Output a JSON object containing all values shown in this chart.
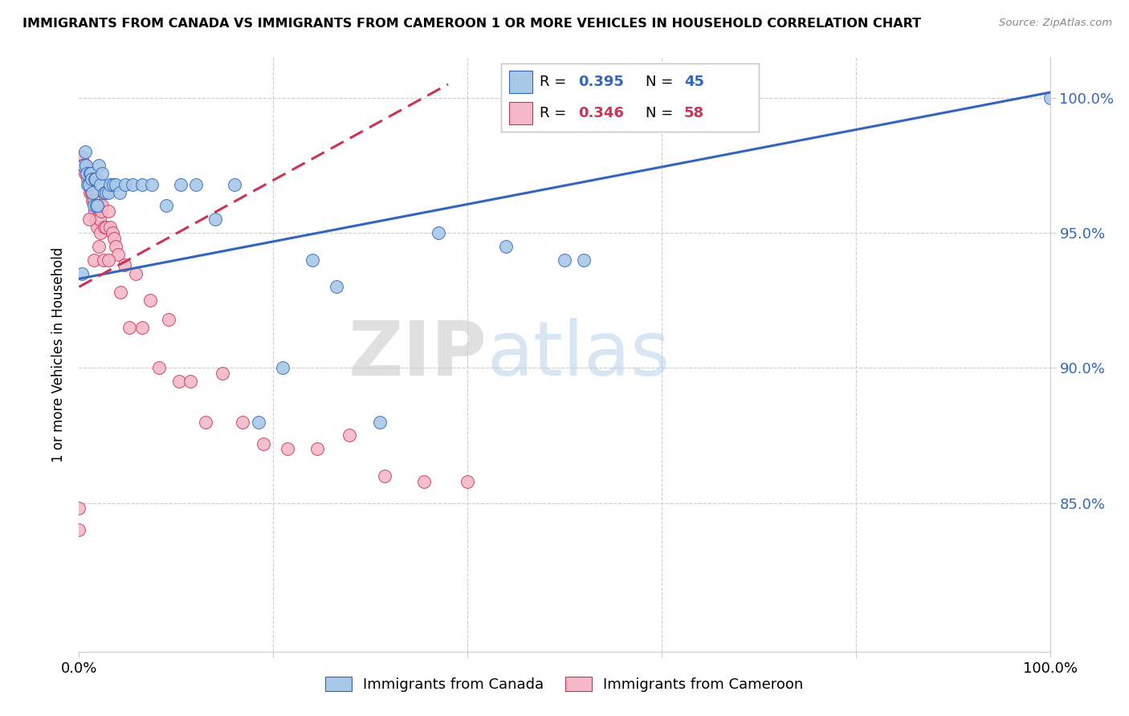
{
  "title": "IMMIGRANTS FROM CANADA VS IMMIGRANTS FROM CAMEROON 1 OR MORE VEHICLES IN HOUSEHOLD CORRELATION CHART",
  "source": "Source: ZipAtlas.com",
  "ylabel": "1 or more Vehicles in Household",
  "xlim": [
    0.0,
    1.0
  ],
  "ylim": [
    0.795,
    1.015
  ],
  "yticks": [
    0.85,
    0.9,
    0.95,
    1.0
  ],
  "ytick_labels": [
    "85.0%",
    "90.0%",
    "95.0%",
    "100.0%"
  ],
  "canada_color": "#a8c8e8",
  "cameroon_color": "#f4b8c8",
  "canada_line_color": "#3366bb",
  "cameroon_line_color": "#cc3355",
  "watermark_zip": "ZIP",
  "watermark_atlas": "atlas",
  "canada_x": [
    0.003,
    0.005,
    0.006,
    0.007,
    0.008,
    0.009,
    0.01,
    0.011,
    0.012,
    0.013,
    0.014,
    0.015,
    0.016,
    0.017,
    0.018,
    0.019,
    0.02,
    0.022,
    0.024,
    0.026,
    0.028,
    0.03,
    0.032,
    0.035,
    0.038,
    0.042,
    0.048,
    0.055,
    0.065,
    0.075,
    0.09,
    0.105,
    0.12,
    0.14,
    0.16,
    0.185,
    0.21,
    0.24,
    0.265,
    0.31,
    0.37,
    0.44,
    0.5,
    0.52,
    1.0
  ],
  "canada_y": [
    0.935,
    0.975,
    0.98,
    0.975,
    0.972,
    0.968,
    0.968,
    0.972,
    0.972,
    0.97,
    0.965,
    0.96,
    0.97,
    0.97,
    0.96,
    0.96,
    0.975,
    0.968,
    0.972,
    0.965,
    0.965,
    0.965,
    0.968,
    0.968,
    0.968,
    0.965,
    0.968,
    0.968,
    0.968,
    0.968,
    0.96,
    0.968,
    0.968,
    0.955,
    0.968,
    0.88,
    0.9,
    0.94,
    0.93,
    0.88,
    0.95,
    0.945,
    0.94,
    0.94,
    1.0
  ],
  "cameroon_x": [
    0.0,
    0.002,
    0.003,
    0.004,
    0.005,
    0.006,
    0.007,
    0.008,
    0.009,
    0.01,
    0.011,
    0.012,
    0.013,
    0.014,
    0.015,
    0.016,
    0.017,
    0.018,
    0.019,
    0.02,
    0.021,
    0.022,
    0.023,
    0.024,
    0.026,
    0.028,
    0.03,
    0.032,
    0.034,
    0.036,
    0.038,
    0.04,
    0.043,
    0.047,
    0.052,
    0.058,
    0.065,
    0.073,
    0.082,
    0.092,
    0.103,
    0.115,
    0.13,
    0.148,
    0.168,
    0.19,
    0.215,
    0.245,
    0.278,
    0.315,
    0.355,
    0.4,
    0.01,
    0.015,
    0.02,
    0.025,
    0.03,
    0.0
  ],
  "cameroon_y": [
    0.84,
    0.978,
    0.978,
    0.975,
    0.975,
    0.972,
    0.975,
    0.972,
    0.97,
    0.968,
    0.965,
    0.968,
    0.965,
    0.962,
    0.962,
    0.958,
    0.955,
    0.955,
    0.952,
    0.96,
    0.955,
    0.95,
    0.958,
    0.96,
    0.952,
    0.952,
    0.958,
    0.952,
    0.95,
    0.948,
    0.945,
    0.942,
    0.928,
    0.938,
    0.915,
    0.935,
    0.915,
    0.925,
    0.9,
    0.918,
    0.895,
    0.895,
    0.88,
    0.898,
    0.88,
    0.872,
    0.87,
    0.87,
    0.875,
    0.86,
    0.858,
    0.858,
    0.955,
    0.94,
    0.945,
    0.94,
    0.94,
    0.848
  ]
}
